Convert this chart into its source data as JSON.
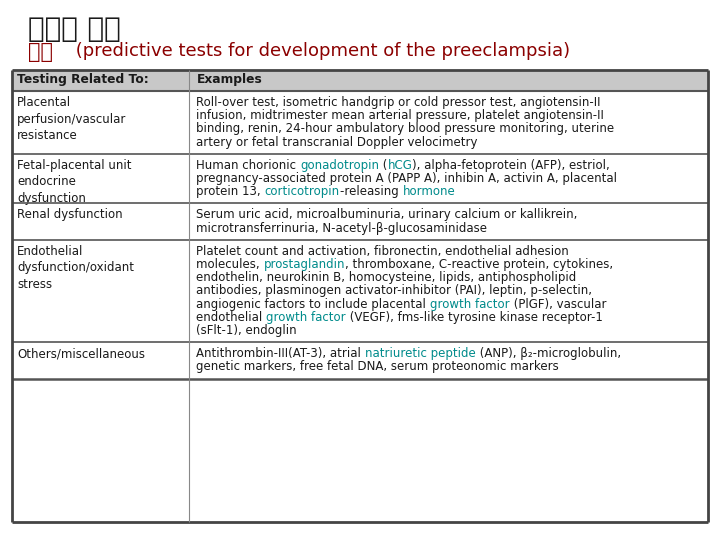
{
  "title_korean": "예측과 예방",
  "subtitle_korean": "예측",
  "subtitle_english": " (predictive tests for development of the preeclampsia)",
  "header_col1": "Testing Related To:",
  "header_col2": "Examples",
  "header_bg": "#c8c8c8",
  "title_color": "#1a1a1a",
  "subtitle_color": "#8b0000",
  "link_color": "#008b8b",
  "text_color": "#1a1a1a",
  "bg_color": "#ffffff",
  "col_split": 0.255,
  "rows": [
    {
      "col1": "Placental\nperfusion/vascular\nresistance",
      "col2_lines": [
        [
          {
            "text": "Roll-over test, isometric handgrip or cold pressor test, angiotensin-II",
            "link": false
          }
        ],
        [
          {
            "text": "infusion, midtrimester mean arterial pressure, platelet angiotensin-II",
            "link": false
          }
        ],
        [
          {
            "text": "binding, renin, 24-hour ambulatory blood pressure monitoring, uterine",
            "link": false
          }
        ],
        [
          {
            "text": "artery or fetal transcranial Doppler velocimetry",
            "link": false
          }
        ]
      ]
    },
    {
      "col1": "Fetal-placental unit\nendocrine\ndysfunction",
      "col2_lines": [
        [
          {
            "text": "Human chorionic ",
            "link": false
          },
          {
            "text": "gonadotropin",
            "link": true
          },
          {
            "text": " (",
            "link": false
          },
          {
            "text": "hCG",
            "link": true
          },
          {
            "text": "), alpha-fetoprotein (AFP), estriol,",
            "link": false
          }
        ],
        [
          {
            "text": "pregnancy-associated protein A (PAPP A), inhibin A, activin A, placental",
            "link": false
          }
        ],
        [
          {
            "text": "protein 13, ",
            "link": false
          },
          {
            "text": "corticotropin",
            "link": true
          },
          {
            "text": "-releasing ",
            "link": false
          },
          {
            "text": "hormone",
            "link": true
          }
        ]
      ]
    },
    {
      "col1": "Renal dysfunction",
      "col2_lines": [
        [
          {
            "text": "Serum uric acid, microalbuminuria, urinary calcium or kallikrein,",
            "link": false
          }
        ],
        [
          {
            "text": "microtransferrinuria, Ν-acetyl-β-glucosaminidase",
            "link": false
          }
        ]
      ]
    },
    {
      "col1": "Endothelial\ndysfunction/oxidant\nstress",
      "col2_lines": [
        [
          {
            "text": "Platelet count and activation, fibronectin, endothelial adhesion",
            "link": false
          }
        ],
        [
          {
            "text": "molecules, ",
            "link": false
          },
          {
            "text": "prostaglandin",
            "link": true
          },
          {
            "text": ", thromboxane, C-reactive protein, cytokines,",
            "link": false
          }
        ],
        [
          {
            "text": "endothelin, neurokinin B, homocysteine, lipids, antiphospholipid",
            "link": false
          }
        ],
        [
          {
            "text": "antibodies, plasminogen activator-inhibitor (PAI), leptin, p-selectin,",
            "link": false
          }
        ],
        [
          {
            "text": "angiogenic factors to include placental ",
            "link": false
          },
          {
            "text": "growth factor",
            "link": true
          },
          {
            "text": " (PlGF), vascular",
            "link": false
          }
        ],
        [
          {
            "text": "endothelial ",
            "link": false
          },
          {
            "text": "growth factor",
            "link": true
          },
          {
            "text": " (VEGF), fms-like tyrosine kinase receptor-1",
            "link": false
          }
        ],
        [
          {
            "text": "(sFlt-1), endoglin",
            "link": false
          }
        ]
      ]
    },
    {
      "col1": "Others/miscellaneous",
      "col2_lines": [
        [
          {
            "text": "Antithrombin-III(AT-3), atrial ",
            "link": false
          },
          {
            "text": "natriuretic peptide",
            "link": true
          },
          {
            "text": " (ANP), β₂-microglobulin,",
            "link": false
          }
        ],
        [
          {
            "text": "genetic markers, free fetal DNA, serum proteonomic markers",
            "link": false
          }
        ]
      ]
    }
  ]
}
